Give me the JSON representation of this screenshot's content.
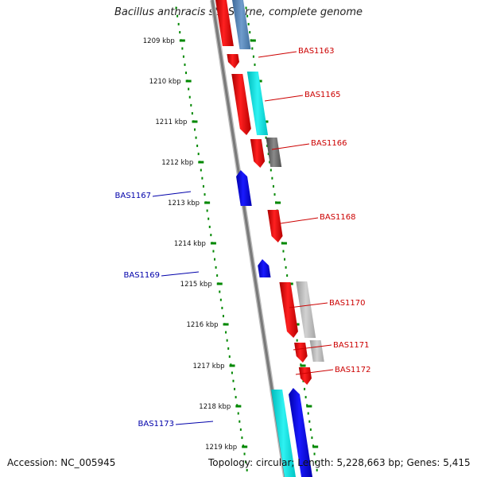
{
  "title": "Bacillus anthracis str. Sterne, complete genome",
  "footer": {
    "accession": "Accession: NC_005945",
    "summary": "Topology: circular; Length: 5,228,663 bp; Genes: 5,415"
  },
  "scale": {
    "unit": "kbp",
    "ticks": [
      "1209 kbp",
      "1210 kbp",
      "1211 kbp",
      "1212 kbp",
      "1213 kbp",
      "1214 kbp",
      "1215 kbp",
      "1216 kbp",
      "1217 kbp",
      "1218 kbp",
      "1219 kbp"
    ]
  },
  "gene_labels": {
    "forward": [
      "BAS1163",
      "BAS1165",
      "BAS1166",
      "BAS1168",
      "BAS1170",
      "BAS1171",
      "BAS1172"
    ],
    "reverse": [
      "BAS1167",
      "BAS1169",
      "BAS1173"
    ]
  },
  "colors": {
    "forward_label": "#cc0000",
    "reverse_label": "#0000aa",
    "forward_gene": "#ff0000",
    "reverse_gene": "#0000ff",
    "rna_gene": "#00e5e5",
    "other_gene": "#aaaaaa",
    "backbone": "#7a7a7a",
    "ruler": "#008800"
  }
}
